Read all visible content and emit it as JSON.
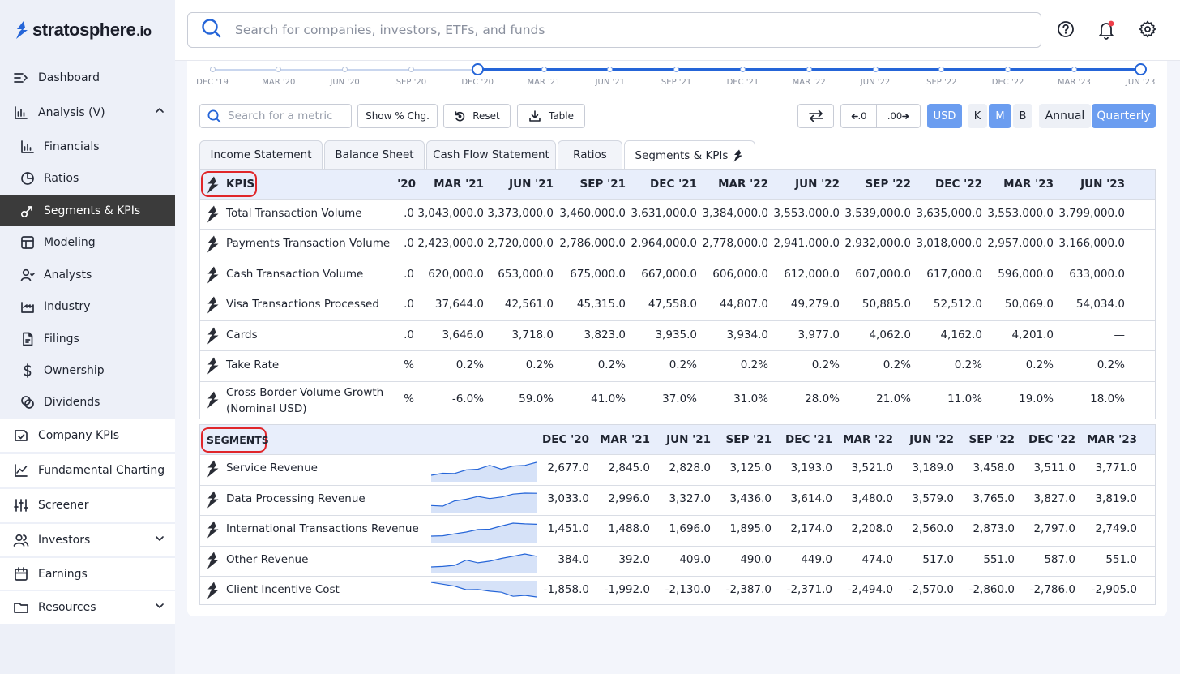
{
  "app": {
    "logo_main": "stratosphere",
    "logo_suffix": ".io"
  },
  "search": {
    "placeholder": "Search for companies, investors, ETFs, and funds"
  },
  "sidebar": {
    "items": [
      {
        "label": "Dashboard",
        "icon": "dashboard-icon"
      },
      {
        "label": "Analysis   (V)",
        "icon": "analysis-icon"
      },
      {
        "label": "Financials",
        "icon": "financials-icon"
      },
      {
        "label": "Ratios",
        "icon": "ratios-icon"
      },
      {
        "label": "Segments & KPIs",
        "icon": "segments-icon"
      },
      {
        "label": "Modeling",
        "icon": "modeling-icon"
      },
      {
        "label": "Analysts",
        "icon": "analysts-icon"
      },
      {
        "label": "Industry",
        "icon": "industry-icon"
      },
      {
        "label": "Filings",
        "icon": "filings-icon"
      },
      {
        "label": "Ownership",
        "icon": "ownership-icon"
      },
      {
        "label": "Dividends",
        "icon": "dividends-icon"
      },
      {
        "label": "Company KPIs",
        "icon": "company-kpis-icon"
      },
      {
        "label": "Fundamental Charting",
        "icon": "charting-icon"
      },
      {
        "label": "Screener",
        "icon": "screener-icon"
      },
      {
        "label": "Investors",
        "icon": "investors-icon"
      },
      {
        "label": "Earnings",
        "icon": "earnings-icon"
      },
      {
        "label": "Resources",
        "icon": "resources-icon"
      }
    ]
  },
  "timeline": {
    "labels": [
      "DEC '19",
      "MAR '20",
      "JUN '20",
      "SEP '20",
      "DEC '20",
      "MAR '21",
      "JUN '21",
      "SEP '21",
      "DEC '21",
      "MAR '22",
      "JUN '22",
      "SEP '22",
      "DEC '22",
      "MAR '23",
      "JUN '23"
    ],
    "range_start": "DEC '20",
    "range_end": "JUN '23"
  },
  "toolbar": {
    "metric_placeholder": "Search for a metric",
    "show_pct": "Show % Chg.",
    "reset": "Reset",
    "table": "Table",
    "dec_less": ".0",
    "dec_more": ".00",
    "currency": "USD",
    "units": [
      "K",
      "M",
      "B"
    ],
    "selected_unit": "M",
    "periods": [
      "Annual",
      "Quarterly"
    ],
    "selected_period": "Quarterly"
  },
  "tabs": [
    "Income Statement",
    "Balance Sheet",
    "Cash Flow Statement",
    "Ratios",
    "Segments & KPIs"
  ],
  "selected_tab": "Segments & KPIs",
  "kpis": {
    "title": "KPIS",
    "partial_col": "'20",
    "columns": [
      "MAR '21",
      "JUN '21",
      "SEP '21",
      "DEC '21",
      "MAR '22",
      "JUN '22",
      "SEP '22",
      "DEC '22",
      "MAR '23",
      "JUN '23"
    ],
    "rows": [
      {
        "name": "Total Transaction Volume",
        "partial": ".0",
        "values": [
          "3,043,000.0",
          "3,373,000.0",
          "3,460,000.0",
          "3,631,000.0",
          "3,384,000.0",
          "3,553,000.0",
          "3,539,000.0",
          "3,635,000.0",
          "3,553,000.0",
          "3,799,000.0"
        ]
      },
      {
        "name": "Payments Transaction Volume",
        "partial": ".0",
        "values": [
          "2,423,000.0",
          "2,720,000.0",
          "2,786,000.0",
          "2,964,000.0",
          "2,778,000.0",
          "2,941,000.0",
          "2,932,000.0",
          "3,018,000.0",
          "2,957,000.0",
          "3,166,000.0"
        ]
      },
      {
        "name": "Cash Transaction Volume",
        "partial": ".0",
        "values": [
          "620,000.0",
          "653,000.0",
          "675,000.0",
          "667,000.0",
          "606,000.0",
          "612,000.0",
          "607,000.0",
          "617,000.0",
          "596,000.0",
          "633,000.0"
        ]
      },
      {
        "name": "Visa Transactions Processed",
        "partial": ".0",
        "values": [
          "37,644.0",
          "42,561.0",
          "45,315.0",
          "47,558.0",
          "44,807.0",
          "49,279.0",
          "50,885.0",
          "52,512.0",
          "50,069.0",
          "54,034.0"
        ]
      },
      {
        "name": "Cards",
        "partial": ".0",
        "values": [
          "3,646.0",
          "3,718.0",
          "3,823.0",
          "3,935.0",
          "3,934.0",
          "3,977.0",
          "4,062.0",
          "4,162.0",
          "4,201.0",
          "—"
        ]
      },
      {
        "name": "Take Rate",
        "partial": "%",
        "values": [
          "0.2%",
          "0.2%",
          "0.2%",
          "0.2%",
          "0.2%",
          "0.2%",
          "0.2%",
          "0.2%",
          "0.2%",
          "0.2%"
        ]
      },
      {
        "name": "Cross Border Volume Growth (Nominal USD)",
        "name_line1": "Cross Border Volume Growth",
        "name_line2": "(Nominal USD)",
        "partial": "%",
        "values": [
          "-6.0%",
          "59.0%",
          "41.0%",
          "37.0%",
          "31.0%",
          "28.0%",
          "21.0%",
          "11.0%",
          "19.0%",
          "18.0%"
        ]
      }
    ]
  },
  "segments": {
    "title": "SEGMENTS",
    "columns": [
      "DEC '20",
      "MAR '21",
      "JUN '21",
      "SEP '21",
      "DEC '21",
      "MAR '22",
      "JUN '22",
      "SEP '22",
      "DEC '22",
      "MAR '23"
    ],
    "rows": [
      {
        "name": "Service Revenue",
        "values": [
          "2,677.0",
          "2,845.0",
          "2,828.0",
          "3,125.0",
          "3,193.0",
          "3,521.0",
          "3,189.0",
          "3,458.0",
          "3,511.0",
          "3,771.0"
        ]
      },
      {
        "name": "Data Processing Revenue",
        "values": [
          "3,033.0",
          "2,996.0",
          "3,327.0",
          "3,436.0",
          "3,614.0",
          "3,480.0",
          "3,579.0",
          "3,765.0",
          "3,827.0",
          "3,819.0"
        ]
      },
      {
        "name": "International Transactions Revenue",
        "values": [
          "1,451.0",
          "1,488.0",
          "1,696.0",
          "1,895.0",
          "2,174.0",
          "2,208.0",
          "2,560.0",
          "2,873.0",
          "2,797.0",
          "2,749.0"
        ]
      },
      {
        "name": "Other Revenue",
        "values": [
          "384.0",
          "392.0",
          "409.0",
          "490.0",
          "449.0",
          "474.0",
          "517.0",
          "551.0",
          "587.0",
          "551.0"
        ]
      },
      {
        "name": "Client Incentive Cost",
        "values": [
          "-1,858.0",
          "-1,992.0",
          "-2,130.0",
          "-2,387.0",
          "-2,371.0",
          "-2,494.0",
          "-2,570.0",
          "-2,860.0",
          "-2,786.0",
          "-2,905.0"
        ]
      }
    ]
  },
  "colors": {
    "accent": "#2565d8",
    "active_btn": "#6b9df0",
    "nav_active": "#3b3b3b",
    "header_bg": "#e8eefb",
    "highlight": "#e0262a"
  }
}
